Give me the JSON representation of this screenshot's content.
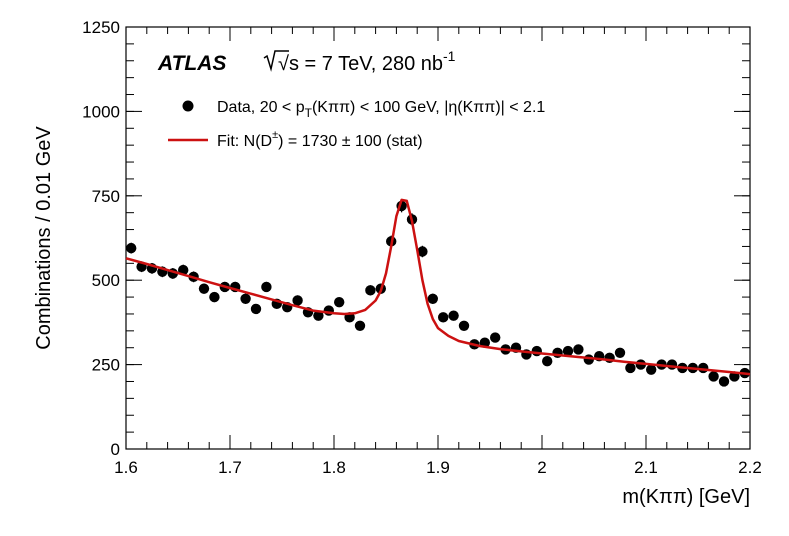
{
  "chart_data": {
    "type": "scatter",
    "experiment": "ATLAS",
    "energy_prefix": "√s = 7 TeV, 280 nb",
    "energy_superscript": "-1",
    "xlabel": "m(Kππ) [GeV]",
    "ylabel": "Combinations / 0.01 GeV",
    "xlim": [
      1.6,
      2.2
    ],
    "ylim": [
      0,
      1250
    ],
    "x_ticks": [
      1.6,
      1.7,
      1.8,
      1.9,
      2.0,
      2.1,
      2.2
    ],
    "x_tick_labels": [
      "1.6",
      "1.7",
      "1.8",
      "1.9",
      "2",
      "2.1",
      "2.2"
    ],
    "y_ticks": [
      0,
      250,
      500,
      750,
      1000,
      1250
    ],
    "y_tick_labels": [
      "0",
      "250",
      "500",
      "750",
      "1000",
      "1250"
    ],
    "legend": {
      "placement": "top-left",
      "data_label": {
        "pre": "Data, 20 < p",
        "sub": "T",
        "post": "(Kππ) < 100 GeV, |η(Kππ)| < 2.1"
      },
      "fit_label": {
        "pre": "Fit: N(D",
        "sup": "±",
        "post": ") = 1730 ± 100 (stat)"
      }
    },
    "series": [
      {
        "name": "Data",
        "color": "#000000",
        "x": [
          1.605,
          1.615,
          1.625,
          1.635,
          1.645,
          1.655,
          1.665,
          1.675,
          1.685,
          1.695,
          1.705,
          1.715,
          1.725,
          1.735,
          1.745,
          1.755,
          1.765,
          1.775,
          1.785,
          1.795,
          1.805,
          1.815,
          1.825,
          1.835,
          1.845,
          1.855,
          1.865,
          1.875,
          1.885,
          1.895,
          1.905,
          1.915,
          1.925,
          1.935,
          1.945,
          1.955,
          1.965,
          1.975,
          1.985,
          1.995,
          2.005,
          2.015,
          2.025,
          2.035,
          2.045,
          2.055,
          2.065,
          2.075,
          2.085,
          2.095,
          2.105,
          2.115,
          2.125,
          2.135,
          2.145,
          2.155,
          2.165,
          2.175,
          2.185,
          2.195
        ],
        "y": [
          595,
          540,
          535,
          525,
          520,
          530,
          510,
          475,
          450,
          480,
          480,
          445,
          415,
          480,
          430,
          420,
          440,
          405,
          395,
          410,
          435,
          390,
          365,
          470,
          475,
          615,
          720,
          680,
          585,
          445,
          390,
          395,
          365,
          310,
          315,
          330,
          295,
          300,
          280,
          290,
          260,
          285,
          290,
          295,
          265,
          275,
          270,
          285,
          240,
          250,
          235,
          250,
          250,
          240,
          240,
          240,
          215,
          200,
          215,
          225
        ],
        "errors": [
          16,
          16,
          16,
          16,
          16,
          16,
          16,
          15,
          15,
          15,
          15,
          15,
          14,
          15,
          14,
          14,
          15,
          14,
          14,
          14,
          14,
          14,
          13,
          15,
          15,
          17,
          19,
          18,
          17,
          15,
          14,
          14,
          13,
          12,
          12,
          13,
          12,
          12,
          12,
          12,
          11,
          12,
          12,
          12,
          11,
          11,
          11,
          12,
          11,
          11,
          11,
          11,
          11,
          11,
          11,
          11,
          10,
          10,
          10,
          11
        ]
      }
    ],
    "fit": {
      "name": "Fit",
      "color": "#cc1111",
      "x": [
        1.6,
        1.62,
        1.64,
        1.66,
        1.68,
        1.7,
        1.72,
        1.74,
        1.76,
        1.78,
        1.8,
        1.81,
        1.82,
        1.83,
        1.84,
        1.845,
        1.85,
        1.855,
        1.86,
        1.865,
        1.87,
        1.875,
        1.88,
        1.885,
        1.89,
        1.895,
        1.9,
        1.91,
        1.92,
        1.94,
        1.96,
        1.98,
        2.0,
        2.02,
        2.04,
        2.06,
        2.08,
        2.1,
        2.12,
        2.14,
        2.16,
        2.18,
        2.2
      ],
      "y": [
        565,
        548,
        530,
        512,
        494,
        477,
        460,
        443,
        426,
        410,
        402,
        400,
        402,
        412,
        440,
        468,
        520,
        600,
        690,
        738,
        735,
        675,
        590,
        500,
        430,
        385,
        358,
        335,
        320,
        305,
        296,
        289,
        283,
        277,
        271,
        265,
        258,
        252,
        246,
        240,
        234,
        228,
        222
      ]
    }
  }
}
